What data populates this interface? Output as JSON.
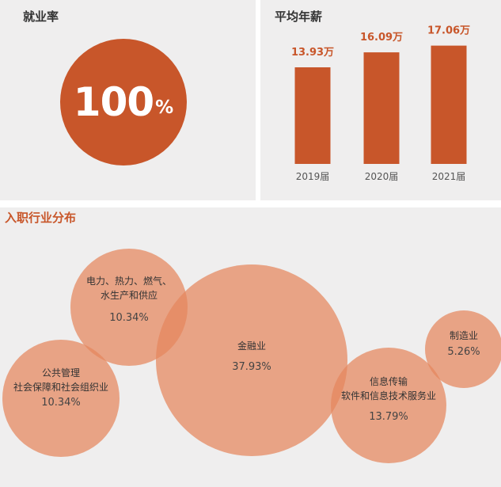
{
  "employment": {
    "title": "就业率",
    "value": "100",
    "unit": "%"
  },
  "salary": {
    "title": "平均年薪"
  },
  "industry": {
    "title": "入职行业分布"
  },
  "colors": {
    "accent": "#c8562a",
    "bubble": "#e4875d",
    "panel": "#efeeee",
    "text": "#333333"
  },
  "chart_data": [
    {
      "type": "bar",
      "title": "平均年薪",
      "categories": [
        "2019届",
        "2020届",
        "2021届"
      ],
      "values": [
        13.93,
        16.09,
        17.06
      ],
      "data_labels": [
        "13.93万",
        "16.09万",
        "17.06万"
      ],
      "ylim": [
        0,
        18.5
      ],
      "grid": false
    },
    {
      "type": "bubble",
      "title": "入职行业分布",
      "items": [
        {
          "label_lines": [
            "电力、热力、燃气、",
            "水生产和供应"
          ],
          "value": 10.34,
          "value_label": "10.34%"
        },
        {
          "label_lines": [
            "公共管理",
            "社会保障和社会组织业"
          ],
          "value": 10.34,
          "value_label": "10.34%"
        },
        {
          "label_lines": [
            "金融业"
          ],
          "value": 37.93,
          "value_label": "37.93%"
        },
        {
          "label_lines": [
            "信息传输",
            "软件和信息技术服务业"
          ],
          "value": 13.79,
          "value_label": "13.79%"
        },
        {
          "label_lines": [
            "制造业"
          ],
          "value": 5.26,
          "value_label": "5.26%"
        }
      ]
    }
  ]
}
